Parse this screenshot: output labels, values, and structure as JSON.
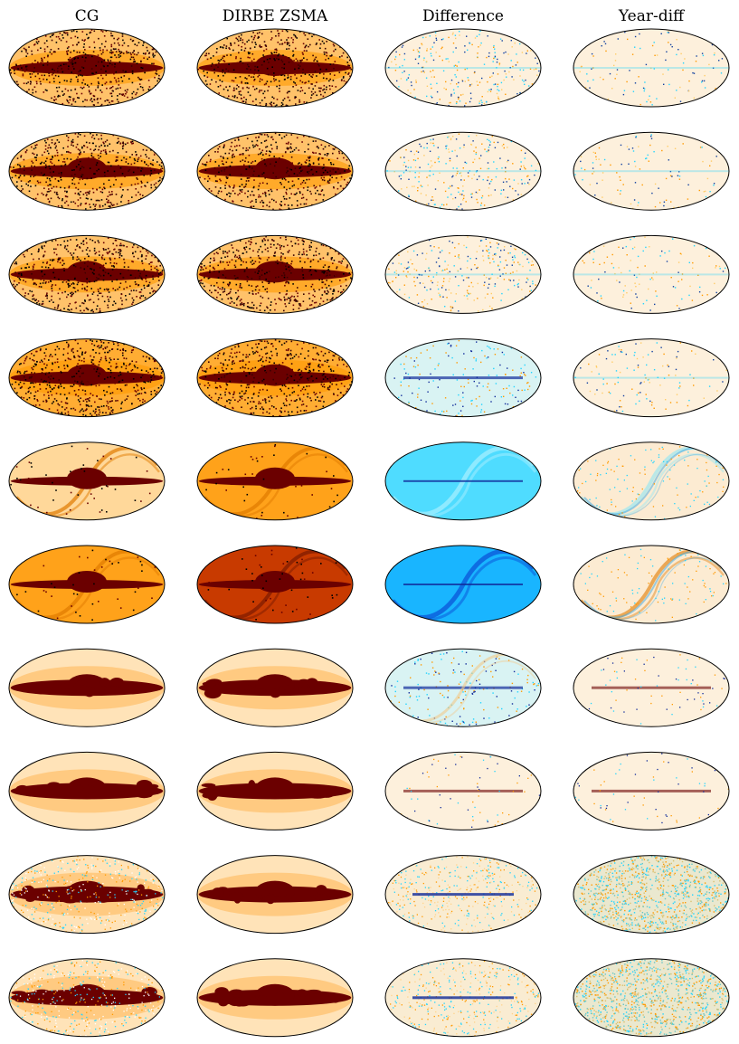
{
  "columns": [
    "CG",
    "DIRBE ZSMA",
    "Difference",
    "Year-diff"
  ],
  "rows": 10,
  "panel_styles": [
    [
      "dense-points",
      "dense-points",
      "sparse-diff",
      "faint-diff"
    ],
    [
      "dense-points",
      "dense-points",
      "sparse-diff",
      "faint-diff"
    ],
    [
      "dense-points",
      "dense-points",
      "sparse-diff",
      "faint-diff"
    ],
    [
      "dense-points-orange",
      "dense-points-orange",
      "cyan-light",
      "faint-diff"
    ],
    [
      "light-zodi",
      "orange-zodi",
      "cyan-strong",
      "residual-zodi"
    ],
    [
      "orange-zodi",
      "red-zodi",
      "blue-strong",
      "residual-zodi-strong"
    ],
    [
      "dust",
      "dust",
      "cyan-light-plane",
      "faint-plane"
    ],
    [
      "dust",
      "dust",
      "faint-plane",
      "faint-plane"
    ],
    [
      "dust-noisy",
      "dust",
      "noisy-plane",
      "noise"
    ],
    [
      "dust-noisy",
      "dust",
      "noisy-plane",
      "noise"
    ]
  ],
  "colors": {
    "background_map": "#fdecd4",
    "galactic_plane": "#6b0000",
    "orange": "#ff9a00",
    "deep_orange": "#e65a00",
    "red_orange": "#c83a00",
    "cyan": "#22d4ff",
    "blue": "#0a9cff",
    "dark_blue": "#102a9a"
  }
}
